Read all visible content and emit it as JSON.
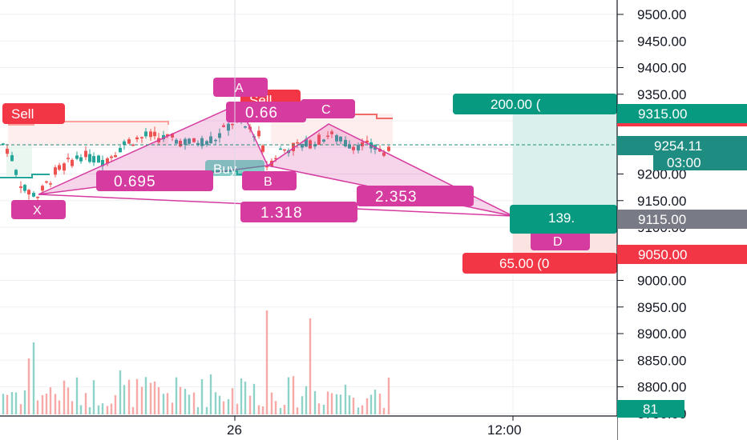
{
  "chart_data": {
    "type": "candlestick",
    "title": "",
    "y_axis": {
      "ticks": [
        9500,
        9450,
        9400,
        9350,
        9300,
        9250,
        9200,
        9150,
        9100,
        9050,
        9000,
        8950,
        8900,
        8850,
        8800,
        8750
      ],
      "tick_labels": [
        "9500.00",
        "9450.00",
        "9400.00",
        "9350.00",
        "9300.00",
        "9250.00",
        "9200.00",
        "9150.00",
        "9100.00",
        "9050.00",
        "9000.00",
        "8950.00",
        "8900.00",
        "8850.00",
        "8800.00",
        "8750.00"
      ],
      "range": [
        8740,
        9520
      ],
      "position": "right"
    },
    "x_axis": {
      "tick_labels": [
        "26",
        "12:00"
      ]
    },
    "grid": true,
    "price_tags": {
      "target": "9315.00",
      "last": "9254.11",
      "countdown": "03:00",
      "entry": "9115.00",
      "stop": "9050.00",
      "volume": "81"
    },
    "harmonic_pattern": {
      "points": [
        {
          "label": "X",
          "price": 9157
        },
        {
          "label": "A",
          "price": 9307
        },
        {
          "label": "B",
          "price": 9202
        },
        {
          "label": "C",
          "price": 9280
        },
        {
          "label": "D",
          "price": 9110
        }
      ],
      "ratios": [
        "0.695",
        "1.318",
        "0.66",
        "2.353"
      ]
    },
    "signals": [
      "Sell",
      "Sell",
      "Buy"
    ],
    "position_tool": {
      "target_text": "200.00 (",
      "entry_text": "139.",
      "stop_text": "65.00 (0"
    },
    "colors": {
      "up": "#26a69a",
      "down": "#ef5350",
      "pattern": "#d63ba0",
      "target": "#089981",
      "stop": "#f23645",
      "last_price": "#1e8c80",
      "entry_tag": "#787b86"
    }
  }
}
